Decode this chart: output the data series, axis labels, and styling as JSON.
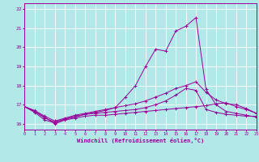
{
  "xlabel": "Windchill (Refroidissement éolien,°C)",
  "bg_color": "#b2e8e8",
  "line_color": "#990099",
  "grid_color": "#ffffff",
  "xmin": 0,
  "xmax": 23,
  "ymin": 15.7,
  "ymax": 22.3,
  "yticks": [
    16,
    17,
    18,
    19,
    20,
    21,
    22
  ],
  "xticks": [
    0,
    1,
    2,
    3,
    4,
    5,
    6,
    7,
    8,
    9,
    10,
    11,
    12,
    13,
    14,
    15,
    16,
    17,
    18,
    19,
    20,
    21,
    22,
    23
  ],
  "curves": [
    [
      16.9,
      16.65,
      16.35,
      16.0,
      16.2,
      16.3,
      16.4,
      16.45,
      16.45,
      16.5,
      16.55,
      16.6,
      16.65,
      16.7,
      16.75,
      16.8,
      16.85,
      16.9,
      16.95,
      17.05,
      17.1,
      16.9,
      16.75,
      16.55
    ],
    [
      16.9,
      16.6,
      16.2,
      16.05,
      16.25,
      16.4,
      16.5,
      16.55,
      16.6,
      16.65,
      16.7,
      16.75,
      16.85,
      17.0,
      17.2,
      17.5,
      17.85,
      17.75,
      16.75,
      16.6,
      16.5,
      16.45,
      16.4,
      16.4
    ],
    [
      16.9,
      16.65,
      16.3,
      16.1,
      16.25,
      16.35,
      16.5,
      16.6,
      16.7,
      16.85,
      17.4,
      18.0,
      19.0,
      19.9,
      19.8,
      20.85,
      21.1,
      21.55,
      17.8,
      17.0,
      16.65,
      16.55,
      16.45,
      16.35
    ],
    [
      16.9,
      16.7,
      16.4,
      16.15,
      16.3,
      16.45,
      16.55,
      16.65,
      16.75,
      16.85,
      16.95,
      17.05,
      17.2,
      17.4,
      17.6,
      17.85,
      18.0,
      18.2,
      17.65,
      17.25,
      17.05,
      17.0,
      16.8,
      16.55
    ]
  ]
}
